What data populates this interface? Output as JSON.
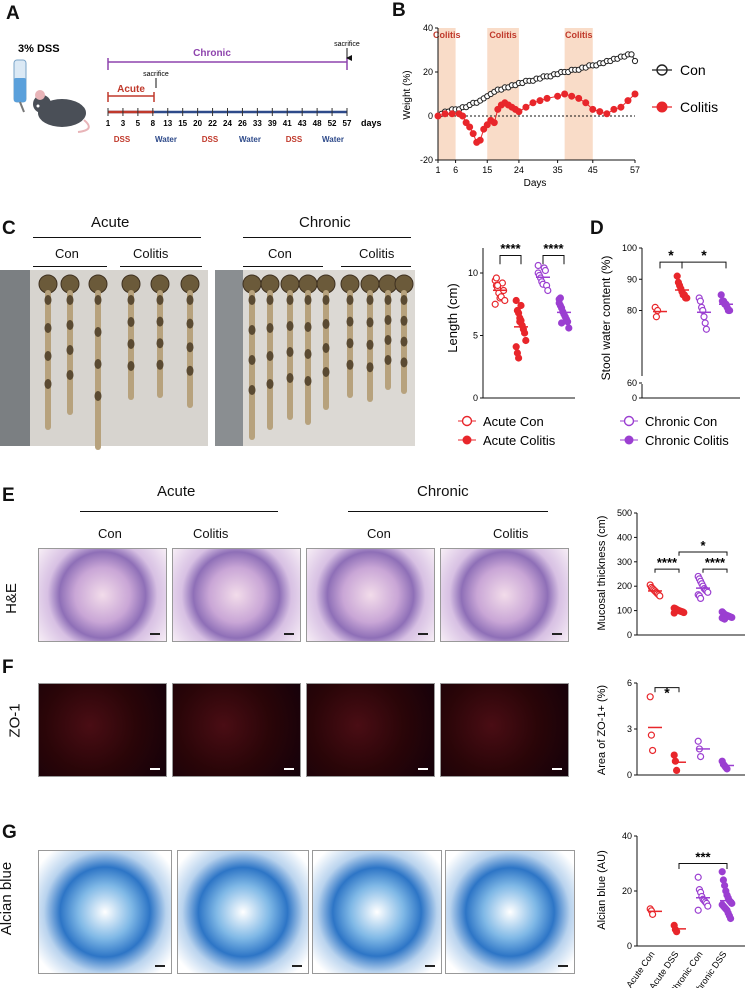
{
  "panel_labels": [
    "A",
    "B",
    "C",
    "D",
    "E",
    "F",
    "G"
  ],
  "panelA": {
    "dss_label": "3% DSS",
    "chronic_label": "Chronic",
    "acute_label": "Acute",
    "sacrifice_acute": "sacrifice",
    "sacrifice_chronic": "sacrifice",
    "days": [
      "1",
      "3",
      "5",
      "8",
      "13",
      "15",
      "20",
      "22",
      "24",
      "26",
      "33",
      "39",
      "41",
      "43",
      "48",
      "52",
      "57"
    ],
    "days_unit": "days",
    "treatments": [
      {
        "label": "DSS",
        "color": "#c0392b"
      },
      {
        "label": "Water",
        "color": "#2e4a8a"
      },
      {
        "label": "DSS",
        "color": "#c0392b"
      },
      {
        "label": "Water",
        "color": "#2e4a8a"
      },
      {
        "label": "DSS",
        "color": "#c0392b"
      },
      {
        "label": "Water",
        "color": "#2e4a8a"
      }
    ]
  },
  "chart_data": [
    {
      "id": "B",
      "type": "line",
      "ylabel": "Weight (%)",
      "xlabel": "Days",
      "xticks": [
        "1",
        "6",
        "15",
        "24",
        "35",
        "45",
        "57"
      ],
      "yticks": [
        "-20",
        "0",
        "20",
        "40"
      ],
      "ylim": [
        -20,
        40
      ],
      "xlim": [
        1,
        57
      ],
      "bands": [
        "Colitis",
        "Colitis",
        "Colitis"
      ],
      "series": [
        {
          "name": "Con",
          "x": [
            1,
            2,
            3,
            4,
            5,
            6,
            7,
            8,
            9,
            10,
            11,
            12,
            13,
            14,
            15,
            16,
            17,
            18,
            19,
            20,
            21,
            22,
            23,
            24,
            25,
            26,
            27,
            28,
            29,
            30,
            31,
            32,
            33,
            34,
            35,
            36,
            37,
            38,
            39,
            40,
            41,
            42,
            43,
            44,
            45,
            46,
            47,
            48,
            49,
            50,
            51,
            52,
            53,
            54,
            55,
            56,
            57
          ],
          "y": [
            0,
            1,
            2,
            2,
            3,
            3,
            3,
            4,
            4,
            5,
            6,
            6,
            7,
            8,
            9,
            10,
            11,
            12,
            12,
            13,
            13,
            14,
            14,
            15,
            15,
            16,
            16,
            16,
            17,
            17,
            18,
            18,
            18,
            19,
            19,
            20,
            20,
            20,
            21,
            21,
            21,
            22,
            22,
            23,
            23,
            23,
            24,
            24,
            25,
            25,
            26,
            26,
            27,
            27,
            28,
            28,
            25
          ]
        },
        {
          "name": "Colitis",
          "x": [
            1,
            3,
            5,
            7,
            8,
            9,
            10,
            11,
            12,
            13,
            14,
            15,
            16,
            17,
            18,
            19,
            20,
            21,
            22,
            23,
            24,
            26,
            28,
            30,
            32,
            35,
            37,
            39,
            41,
            43,
            45,
            47,
            49,
            51,
            53,
            55,
            57
          ],
          "y": [
            0,
            1,
            1,
            1,
            0,
            -3,
            -5,
            -8,
            -12,
            -11,
            -6,
            -4,
            -2,
            -3,
            3,
            5,
            6,
            5,
            4,
            3,
            2,
            4,
            6,
            7,
            8,
            9,
            10,
            9,
            8,
            6,
            3,
            2,
            1,
            3,
            4,
            7,
            10
          ]
        }
      ]
    },
    {
      "id": "C",
      "type": "scatter",
      "ylabel": "Length (cm)",
      "yticks": [
        "0",
        "5",
        "10"
      ],
      "ylim": [
        0,
        12
      ],
      "groups": [
        {
          "name": "Acute Con",
          "values": [
            9.4,
            9.0,
            8.8,
            8.4,
            8.0,
            8.1,
            9.2,
            8.6,
            7.8,
            7.5,
            9.6,
            9.0
          ]
        },
        {
          "name": "Acute Colitis",
          "values": [
            7.8,
            7.0,
            6.8,
            6.4,
            6.2,
            5.8,
            5.5,
            5.2,
            4.6,
            4.1,
            3.6,
            3.2,
            6.1,
            7.4
          ]
        },
        {
          "name": "Chronic Con",
          "values": [
            10.0,
            9.8,
            9.6,
            9.3,
            9.1,
            10.4,
            10.2,
            9.0,
            8.6,
            10.6
          ]
        },
        {
          "name": "Chronic Colitis",
          "values": [
            7.9,
            7.4,
            7.2,
            6.9,
            6.7,
            6.5,
            6.3,
            6.1,
            5.6,
            7.6,
            8.0,
            6.0
          ]
        }
      ],
      "significance": [
        "****",
        "****"
      ]
    },
    {
      "id": "D",
      "type": "scatter",
      "ylabel": "Stool water content (%)",
      "yticks": [
        "0",
        "60",
        "80",
        "90",
        "100"
      ],
      "ylim": [
        0,
        100
      ],
      "groups": [
        {
          "name": "Acute Con",
          "values": [
            81,
            78,
            80
          ]
        },
        {
          "name": "Acute Colitis",
          "values": [
            91,
            89,
            88,
            87,
            86,
            85,
            85,
            84,
            84
          ]
        },
        {
          "name": "Chronic Con",
          "values": [
            84,
            83,
            81,
            80,
            78,
            76,
            74
          ]
        },
        {
          "name": "Chronic Colitis",
          "values": [
            85,
            83,
            83,
            82,
            82,
            81,
            80,
            80
          ]
        }
      ],
      "significance": [
        "*",
        "*"
      ]
    },
    {
      "id": "E",
      "type": "scatter",
      "ylabel": "Mucosal thickness (cm)",
      "yticks": [
        "0",
        "100",
        "200",
        "300",
        "400",
        "500"
      ],
      "ylim": [
        0,
        500
      ],
      "groups": [
        {
          "name": "Acute Con",
          "values": [
            205,
            195,
            190,
            185,
            180,
            175,
            170,
            165,
            160
          ]
        },
        {
          "name": "Acute Colitis",
          "values": [
            110,
            108,
            105,
            102,
            100,
            98,
            96,
            95,
            92,
            90
          ]
        },
        {
          "name": "Chronic Con",
          "values": [
            240,
            230,
            220,
            210,
            200,
            190,
            185,
            180,
            175,
            165,
            160,
            150
          ]
        },
        {
          "name": "Chronic Colitis",
          "values": [
            95,
            90,
            85,
            82,
            80,
            78,
            76,
            74,
            72,
            70,
            68,
            65
          ]
        }
      ],
      "significance": [
        "****",
        "****",
        "*"
      ]
    },
    {
      "id": "F",
      "type": "scatter",
      "ylabel": "Area of ZO-1+ (%)",
      "yticks": [
        "0",
        "3",
        "6"
      ],
      "ylim": [
        0,
        6
      ],
      "groups": [
        {
          "name": "Acute Con",
          "values": [
            5.1,
            2.6,
            1.6
          ]
        },
        {
          "name": "Acute Colitis",
          "values": [
            1.3,
            0.9,
            0.3
          ]
        },
        {
          "name": "Chronic Con",
          "values": [
            2.2,
            1.7,
            1.2
          ]
        },
        {
          "name": "Chronic Colitis",
          "values": [
            0.9,
            0.7,
            0.6,
            0.5,
            0.4
          ]
        }
      ],
      "significance": [
        "*"
      ]
    },
    {
      "id": "G",
      "type": "scatter",
      "ylabel": "Alcian blue (AU)",
      "yticks": [
        "0",
        "20",
        "40"
      ],
      "ylim": [
        0,
        40
      ],
      "categories": [
        "Acute Con",
        "Acute DSS",
        "Chronic Con",
        "Chronic DSS"
      ],
      "groups": [
        {
          "name": "Acute Con",
          "values": [
            13.5,
            12.8,
            11.5
          ]
        },
        {
          "name": "Acute DSS",
          "values": [
            7.5,
            6.0,
            5.2
          ]
        },
        {
          "name": "Chronic Con",
          "values": [
            25.0,
            20.5,
            19.5,
            18.0,
            17.0,
            16.5,
            16.0,
            15.5,
            14.5,
            13.0
          ]
        },
        {
          "name": "Chronic DSS",
          "values": [
            27.0,
            24.0,
            22.0,
            20.0,
            18.5,
            17.5,
            16.5,
            16.0,
            15.5,
            15.0,
            14.5,
            14.0,
            13.5,
            13.0,
            12.0,
            11.0,
            10.0
          ]
        }
      ],
      "significance": [
        "***"
      ]
    }
  ],
  "legends": {
    "B": [
      "Con",
      "Colitis"
    ],
    "CD": [
      "Acute Con",
      "Acute Colitis",
      "Chronic Con",
      "Chronic Colitis"
    ]
  },
  "panelC": {
    "acute": "Acute",
    "chronic": "Chronic",
    "con1": "Con",
    "colitis1": "Colitis",
    "con2": "Con",
    "colitis2": "Colitis"
  },
  "panelE": {
    "acute": "Acute",
    "chronic": "Chronic",
    "cols": [
      "Con",
      "Colitis",
      "Con",
      "Colitis"
    ]
  },
  "row_labels": {
    "E": "H&E",
    "F": "ZO-1",
    "G": "Alcian blue"
  },
  "colors": {
    "acute": "#e8262b",
    "chronic": "#9b3fd1",
    "con": "#222222",
    "band": "#f9dcc8",
    "chronic_line": "#8e44ad",
    "acute_line": "#c0392b",
    "timeline": "#2e4a8a"
  }
}
